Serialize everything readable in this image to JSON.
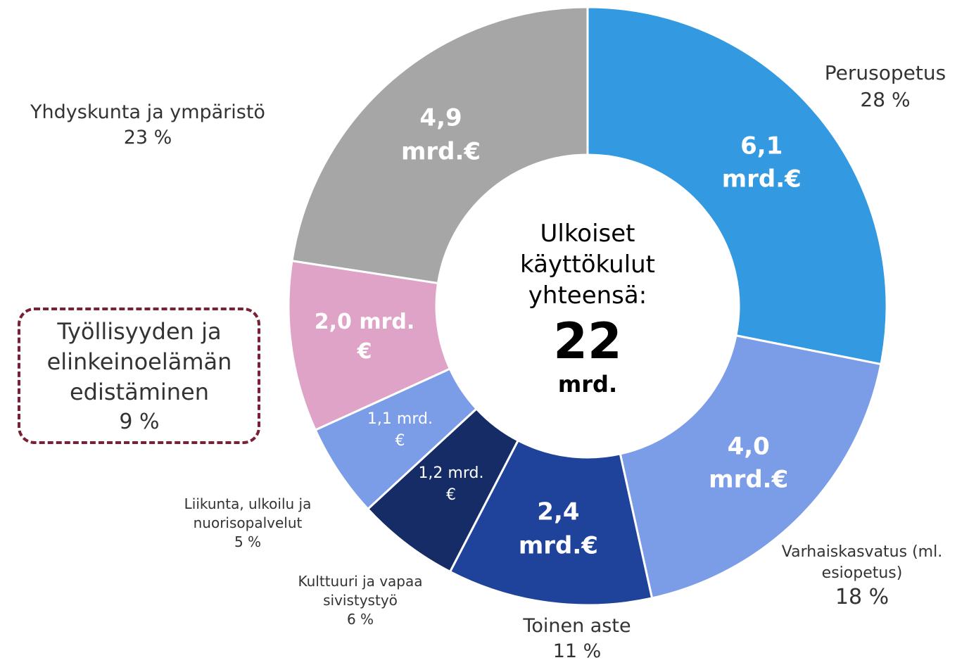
{
  "chart_data": {
    "type": "donut",
    "categories": [
      "Perusopetus",
      "Varhaiskasvatus (ml. esiopetus)",
      "Toinen aste",
      "Kulttuuri ja vapaa sivistystyö",
      "Liikunta, ulkoilu ja nuorisopalvelut",
      "Työllisyyden ja elinkeinoelämän edistäminen",
      "Yhdyskunta ja ympäristö"
    ],
    "values": [
      6.1,
      4.0,
      2.4,
      1.2,
      1.1,
      2.0,
      4.9
    ],
    "value_labels": [
      "6,1 mrd.€",
      "4,0 mrd.€",
      "2,4 mrd.€",
      "1,2 mrd.€",
      "1,1 mrd.€",
      "2,0 mrd.€",
      "4,9 mrd.€"
    ],
    "percent_labels": [
      "28 %",
      "18 %",
      "11 %",
      "6 %",
      "5 %",
      "9 %",
      "23 %"
    ],
    "colors": [
      "#3399e0",
      "#7b9de8",
      "#1f439a",
      "#152c66",
      "#7b9de8",
      "#dea3c7",
      "#a6a6a6"
    ],
    "center_title": "Ulkoiset käyttökulut yhteensä:",
    "center_value": 22,
    "center_unit": "mrd."
  }
}
